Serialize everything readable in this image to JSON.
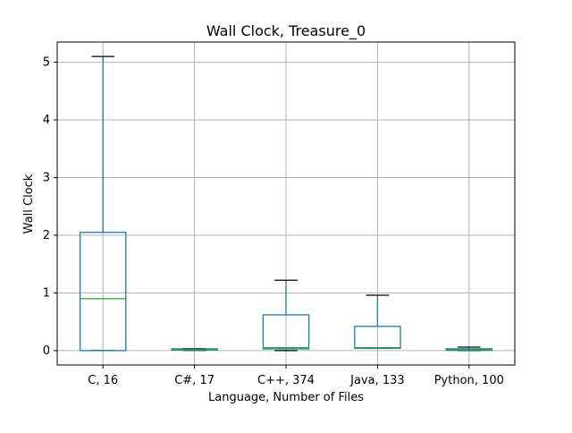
{
  "chart_data": {
    "type": "box",
    "title": "Wall Clock, Treasure_0",
    "xlabel": "Language, Number of Files",
    "ylabel": "Wall Clock",
    "ylim": [
      -0.25,
      5.35
    ],
    "yticks": [
      0,
      1,
      2,
      3,
      4,
      5
    ],
    "grid": true,
    "categories": [
      "C, 16",
      "C#, 17",
      "C++, 374",
      "Java, 133",
      "Python, 100"
    ],
    "boxes": [
      {
        "whislo": 0.0,
        "q1": 0.0,
        "med": 0.9,
        "q3": 2.05,
        "whishi": 5.1
      },
      {
        "whislo": 0.005,
        "q1": 0.01,
        "med": 0.02,
        "q3": 0.03,
        "whishi": 0.035
      },
      {
        "whislo": 0.0,
        "q1": 0.03,
        "med": 0.05,
        "q3": 0.62,
        "whishi": 1.22
      },
      {
        "whislo": 0.04,
        "q1": 0.04,
        "med": 0.05,
        "q3": 0.42,
        "whishi": 0.96
      },
      {
        "whislo": 0.0,
        "q1": 0.005,
        "med": 0.015,
        "q3": 0.03,
        "whishi": 0.06
      }
    ],
    "colors": {
      "box": "#1f77b4",
      "median": "#2ca02c",
      "cap": "#000000",
      "grid": "#b0b0b0",
      "axis": "#000000"
    }
  }
}
